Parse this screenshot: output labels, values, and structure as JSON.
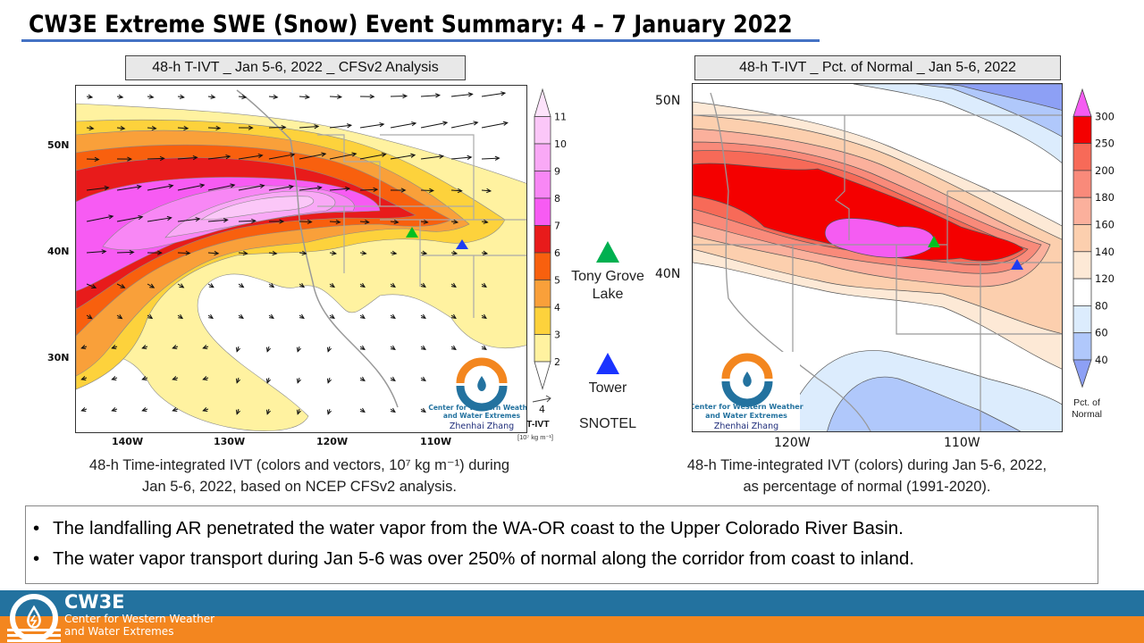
{
  "header": {
    "title": "CW3E Extreme SWE (Snow) Event Summary: 4 – 7 January 2022",
    "underline_color": "#4472c4"
  },
  "chart_data": [
    {
      "type": "heatmap",
      "title": "48-h T-IVT _ Jan 5-6, 2022 _ CFSv2 Analysis",
      "subtype": "filled contour map with vectors",
      "xlabel": "",
      "ylabel": "",
      "x_ticks": [
        "140W",
        "130W",
        "120W",
        "110W"
      ],
      "y_ticks": [
        "50N",
        "40N",
        "30N"
      ],
      "xlim": [
        "145W",
        "100W"
      ],
      "ylim": [
        "23N",
        "56N"
      ],
      "colorbar": {
        "label": "T-IVT",
        "units": "[10⁷ kg m⁻¹]",
        "levels": [
          "2",
          "3",
          "4",
          "5",
          "6",
          "7",
          "8",
          "9",
          "10",
          "11"
        ],
        "colors": [
          "#ffffff",
          "#fff2a0",
          "#fdd23c",
          "#f9a03a",
          "#f8600e",
          "#e81b1b",
          "#f75bf3",
          "#f887f5",
          "#f9a9f6",
          "#fbc7f8",
          "#fde3fb"
        ],
        "extend": "both"
      },
      "reference_vector": "4",
      "markers": [
        {
          "name": "Tony Grove Lake",
          "color": "#00c020",
          "lon": -111.6,
          "lat": 41.9
        },
        {
          "name": "Tower",
          "color": "#1f3df2",
          "lon": -106.9,
          "lat": 40.5
        }
      ],
      "watermark": {
        "line1": "Center for Western Weather",
        "line2": "and Water Extremes",
        "author": "Zhenhai Zhang"
      },
      "caption_line1": "48-h Time-integrated  IVT (colors and vectors, 10⁷ kg m⁻¹) during",
      "caption_line2": "Jan 5-6, 2022, based on NCEP CFSv2 analysis."
    },
    {
      "type": "heatmap",
      "title": "48-h T-IVT _ Pct. of Normal _ Jan 5-6, 2022",
      "subtype": "filled contour map",
      "xlabel": "",
      "ylabel": "",
      "x_ticks": [
        "120W",
        "110W"
      ],
      "y_ticks": [
        "50N",
        "40N"
      ],
      "xlim": [
        "126W",
        "103W"
      ],
      "ylim": [
        "32N",
        "51N"
      ],
      "colorbar": {
        "label": "Pct. of Normal",
        "levels": [
          "40",
          "60",
          "80",
          "120",
          "140",
          "160",
          "180",
          "200",
          "250",
          "300"
        ],
        "colors": [
          "#8da0f5",
          "#b0c8fb",
          "#dcecfd",
          "#ffffff",
          "#fde9d6",
          "#fccfae",
          "#fbb09c",
          "#f98a7a",
          "#f76a58",
          "#f40000",
          "#f55cf2"
        ],
        "extend": "both"
      },
      "markers": [
        {
          "name": "Tony Grove Lake",
          "color": "#00c020",
          "lon": -111.6,
          "lat": 41.9
        },
        {
          "name": "Tower",
          "color": "#1f3df2",
          "lon": -106.9,
          "lat": 40.5
        }
      ],
      "watermark": {
        "line1": "Center for Western Weather",
        "line2": "and Water Extremes",
        "author": "Zhenhai Zhang"
      },
      "caption_line1": "48-h Time-integrated  IVT (colors) during Jan 5-6, 2022,",
      "caption_line2": "as percentage of normal (1991-2020)."
    }
  ],
  "legend": {
    "site1": {
      "label_line1": "Tony Grove",
      "label_line2": "Lake",
      "color": "#00b050"
    },
    "site2": {
      "label": "Tower",
      "color": "#1a33ff"
    },
    "network": "SNOTEL"
  },
  "bullets": [
    "The landfalling AR penetrated the water vapor from the WA-OR coast to the Upper Colorado River Basin.",
    "The water vapor transport during Jan 5-6 was over 250% of normal along the corridor from coast to inland."
  ],
  "footer": {
    "org_short": "CW3E",
    "org_line1": "Center for Western Weather",
    "org_line2": "and Water Extremes",
    "blue": "#23729f",
    "orange": "#f3861f"
  }
}
